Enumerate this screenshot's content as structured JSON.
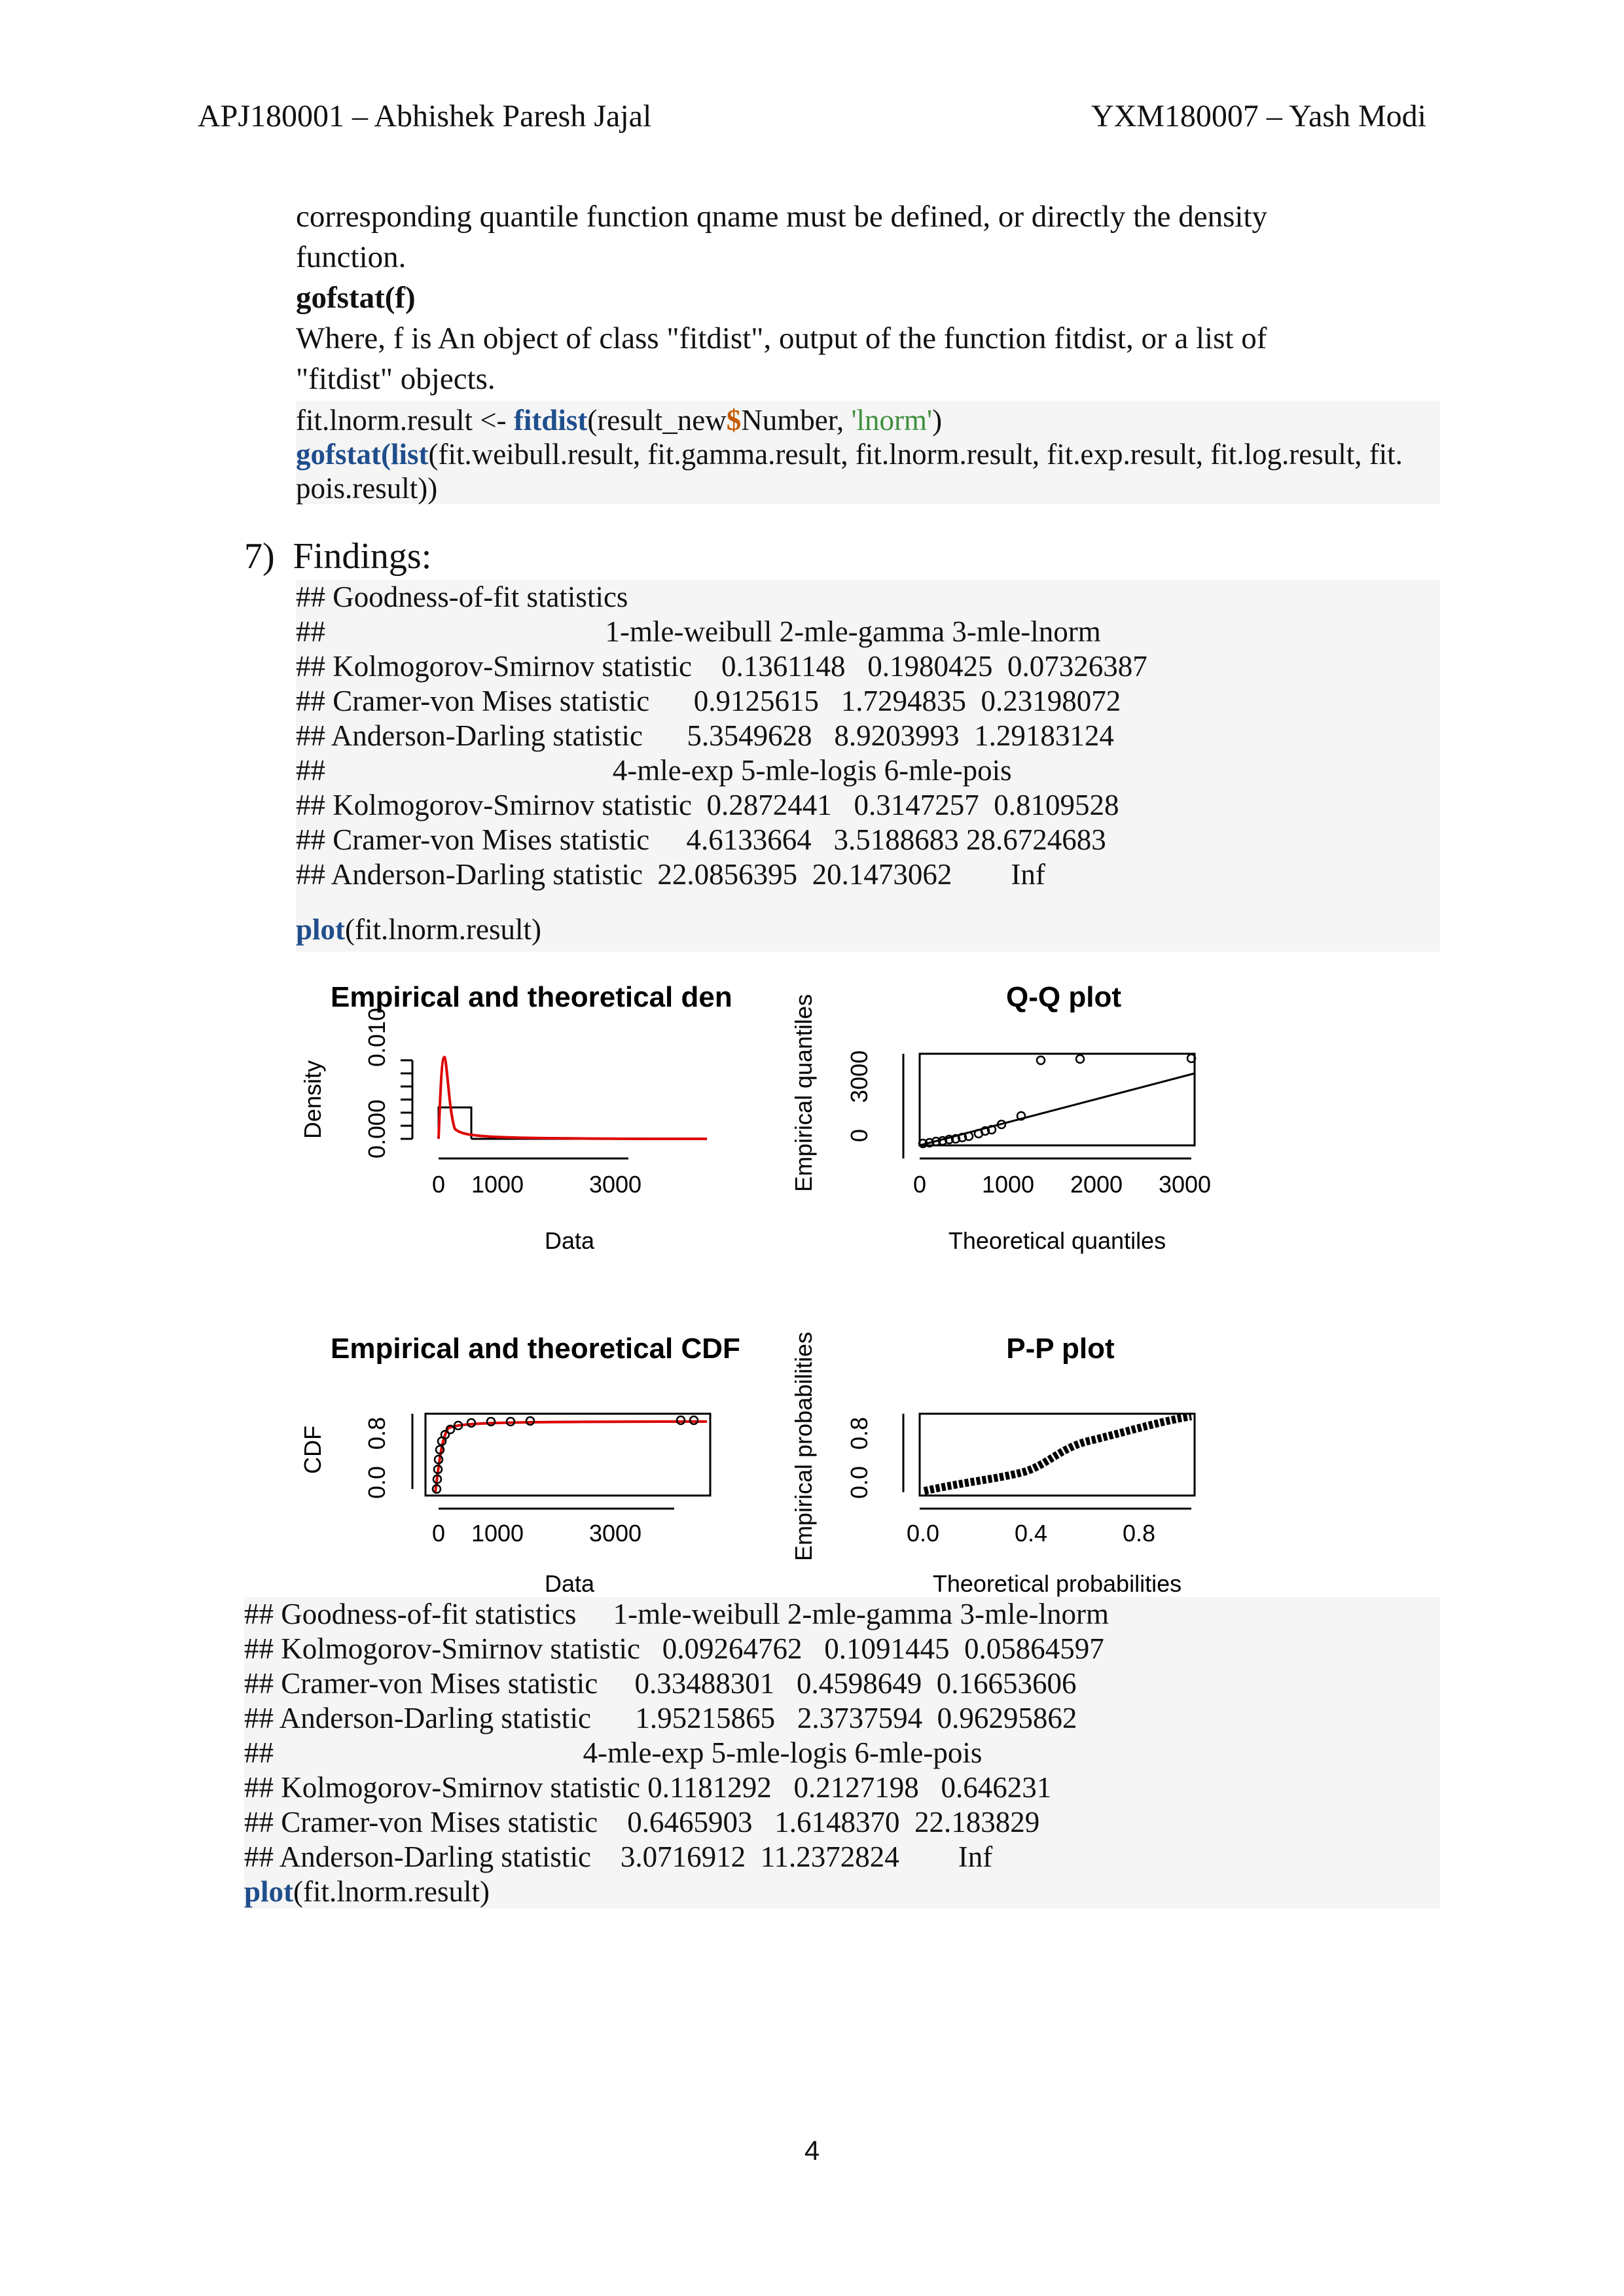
{
  "header": {
    "left": "APJ180001 – Abhishek Paresh Jajal",
    "right": "YXM180007 – Yash Modi"
  },
  "intro": {
    "line1": "corresponding quantile function qname must be defined, or directly the density",
    "line2": "function.",
    "gofstat_title": "gofstat(f)",
    "where_line1": "Where, f is An object of class \"fitdist\", output of the function fitdist, or a list of",
    "where_line2": "\"fitdist\" objects."
  },
  "code1": {
    "line1_a": "fit.lnorm.result <- ",
    "line1_fn": "fitdist",
    "line1_b": "(result_new",
    "line1_dollar": "$",
    "line1_c": "Number, ",
    "line1_str": "'lnorm'",
    "line1_d": ")",
    "line2_fn1": "gofstat",
    "line2_p1": "(",
    "line2_fn2": "list",
    "line2_rest": "(fit.weibull.result, fit.gamma.result, fit.lnorm.result, fit.exp.result, fit.log.result, fit.",
    "line3": "pois.result))"
  },
  "findings": {
    "number": "7)",
    "title": "Findings:",
    "rows": [
      "## Goodness-of-fit statistics",
      "##                                      1-mle-weibull 2-mle-gamma 3-mle-lnorm",
      "## Kolmogorov-Smirnov statistic    0.1361148   0.1980425  0.07326387",
      "## Cramer-von Mises statistic      0.9125615   1.7294835  0.23198072",
      "## Anderson-Darling statistic      5.3549628   8.9203993  1.29183124",
      "##                                       4-mle-exp 5-mle-logis 6-mle-pois",
      "## Kolmogorov-Smirnov statistic  0.2872441   0.3147257  0.8109528",
      "## Cramer-von Mises statistic     4.6133664   3.5188683 28.6724683",
      "## Anderson-Darling statistic  22.0856395  20.1473062        Inf"
    ],
    "plot_fn": "plot",
    "plot_arg": "(fit.lnorm.result)"
  },
  "figure": {
    "density": {
      "title": "Empirical and theoretical den",
      "ylabel": "Density",
      "xlabel": "Data",
      "yticks": [
        "0.000",
        "0.010"
      ],
      "xticks": [
        "0",
        "1000",
        "3000"
      ]
    },
    "qq": {
      "title": "Q-Q plot",
      "ylabel": "Empirical quantiles",
      "xlabel": "Theoretical quantiles",
      "yticks": [
        "0",
        "3000"
      ],
      "xticks": [
        "0",
        "1000",
        "2000",
        "3000"
      ]
    },
    "cdf": {
      "title": "Empirical and theoretical CDF",
      "ylabel": "CDF",
      "xlabel": "Data",
      "yticks": [
        "0.0",
        "0.8"
      ],
      "xticks": [
        "0",
        "1000",
        "3000"
      ]
    },
    "pp": {
      "title": "P-P plot",
      "ylabel": "Empirical probabilities",
      "xlabel": "Theoretical probabilities",
      "yticks": [
        "0.0",
        "0.8"
      ],
      "xticks": [
        "0.0",
        "0.4",
        "0.8"
      ]
    },
    "colors": {
      "theoretical": "#dd0000",
      "empirical": "#000000"
    }
  },
  "results2": {
    "rows": [
      "## Goodness-of-fit statistics     1-mle-weibull 2-mle-gamma 3-mle-lnorm",
      "## Kolmogorov-Smirnov statistic   0.09264762   0.1091445  0.05864597",
      "## Cramer-von Mises statistic     0.33488301   0.4598649  0.16653606",
      "## Anderson-Darling statistic      1.95215865   2.3737594  0.96295862",
      "##                                          4-mle-exp 5-mle-logis 6-mle-pois",
      "## Kolmogorov-Smirnov statistic 0.1181292   0.2127198   0.646231",
      "## Cramer-von Mises statistic    0.6465903   1.6148370  22.183829",
      "## Anderson-Darling statistic    3.0716912  11.2372824        Inf"
    ],
    "plot_fn": "plot",
    "plot_arg": "(fit.lnorm.result)"
  },
  "page_number": "4"
}
